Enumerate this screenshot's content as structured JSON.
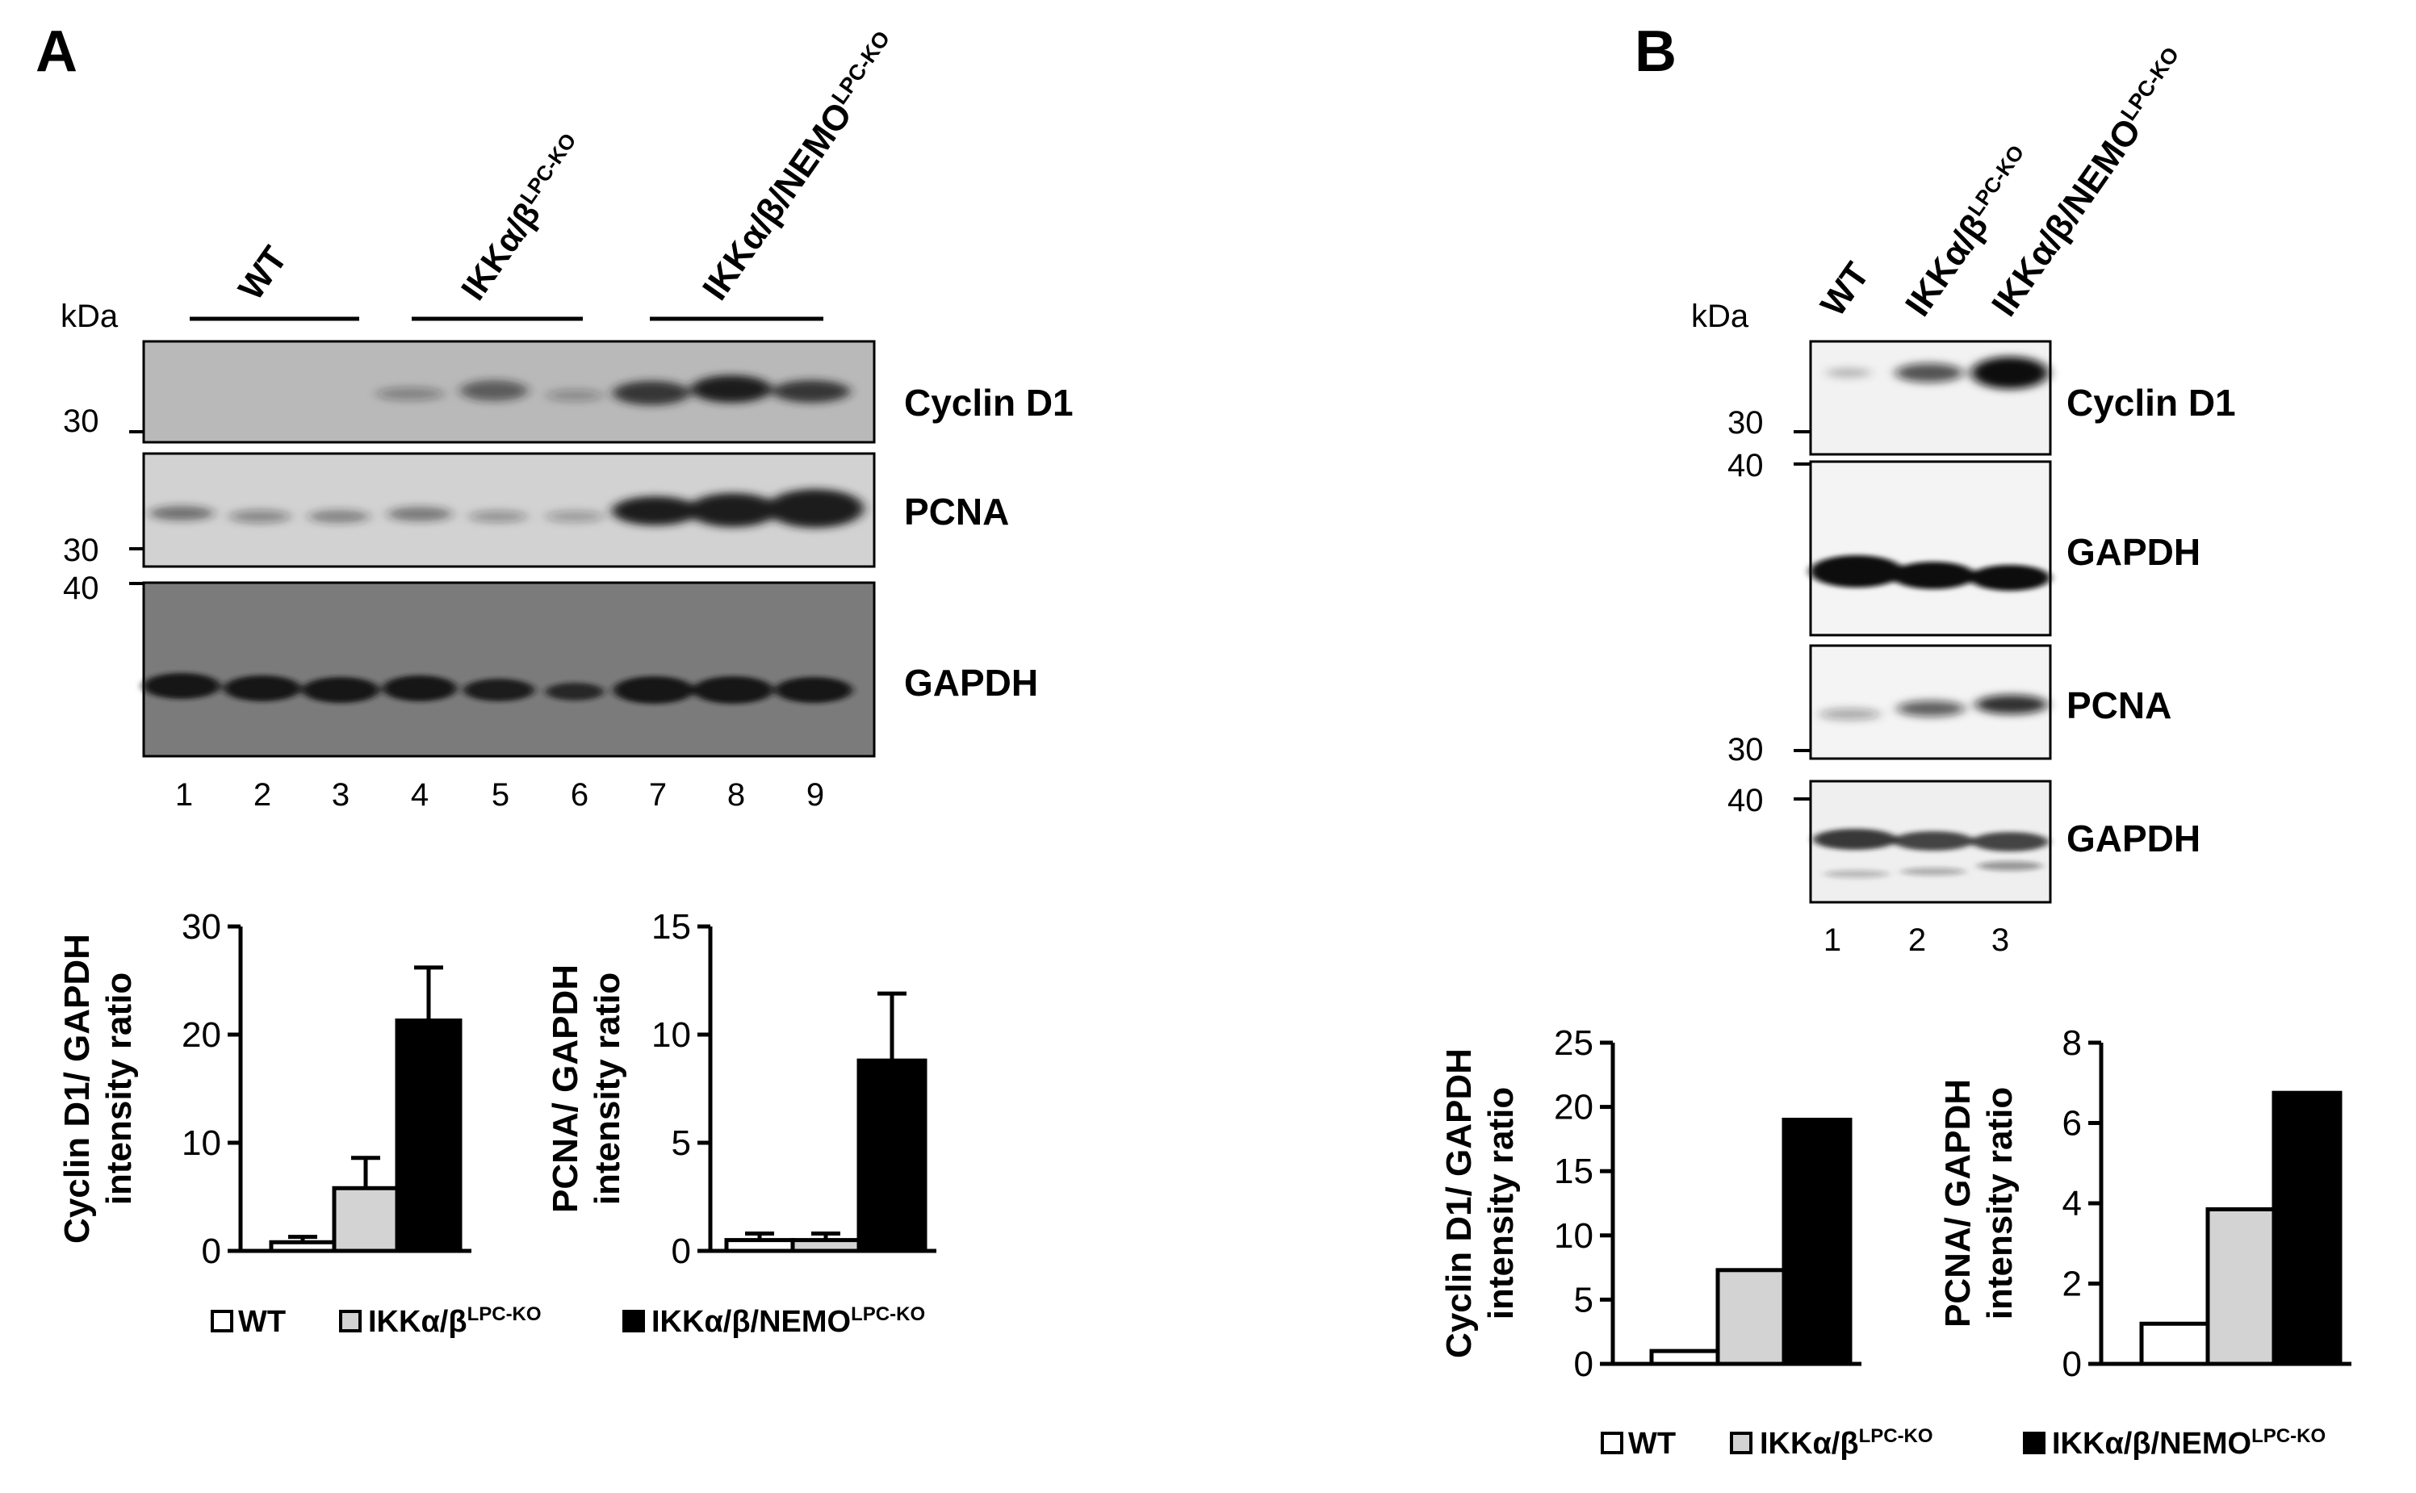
{
  "panels": {
    "A": {
      "letter": "A",
      "kda_label": "kDa",
      "groups": [
        {
          "label_base": "WT",
          "label_sup": ""
        },
        {
          "label_base": "IKKα/β",
          "label_sup": "LPC-KO"
        },
        {
          "label_base": "IKKα/β/NEMO",
          "label_sup": "LPC-KO"
        }
      ],
      "blots": [
        {
          "name": "Cyclin D1",
          "marker_top": "",
          "marker_bottom": "30"
        },
        {
          "name": "PCNA",
          "marker_top": "",
          "marker_bottom": "30"
        },
        {
          "name": "GAPDH",
          "marker_top": "40",
          "marker_bottom": ""
        }
      ],
      "lanes": [
        "1",
        "2",
        "3",
        "4",
        "5",
        "6",
        "7",
        "8",
        "9"
      ]
    },
    "B": {
      "letter": "B",
      "kda_label": "kDa",
      "groups": [
        {
          "label_base": "WT",
          "label_sup": ""
        },
        {
          "label_base": "IKKα/β",
          "label_sup": "LPC-KO"
        },
        {
          "label_base": "IKKα/β/NEMO",
          "label_sup": "LPC-KO"
        }
      ],
      "blots": [
        {
          "name": "Cyclin D1",
          "marker_top": "",
          "marker_bottom": "30"
        },
        {
          "name": "GAPDH",
          "marker_top": "40",
          "marker_bottom": ""
        },
        {
          "name": "PCNA",
          "marker_top": "",
          "marker_bottom": "30"
        },
        {
          "name": "GAPDH",
          "marker_top": "40",
          "marker_bottom": ""
        }
      ],
      "lanes": [
        "1",
        "2",
        "3"
      ]
    }
  },
  "legend": {
    "items": [
      {
        "base": "WT",
        "sup": "",
        "fill": "#ffffff"
      },
      {
        "base": "IKKα/β",
        "sup": "LPC-KO",
        "fill": "#d3d3d3"
      },
      {
        "base": "IKKα/β/NEMO",
        "sup": "LPC-KO",
        "fill": "#000000"
      }
    ]
  },
  "chart_data": [
    {
      "panel": "A",
      "type": "bar",
      "categories": [
        "WT",
        "IKKα/β LPC-KO",
        "IKKα/β/NEMO LPC-KO"
      ],
      "values": [
        0.8,
        5.8,
        21.3
      ],
      "errors": [
        0.5,
        2.8,
        4.9
      ],
      "ylabel_line1": "Cyclin D1/ GAPDH",
      "ylabel_line2": "intensity ratio",
      "ylim": [
        0,
        30
      ],
      "yticks": [
        "0",
        "10",
        "20",
        "30"
      ],
      "tick_values": [
        0,
        10,
        20,
        30
      ]
    },
    {
      "panel": "A",
      "type": "bar",
      "categories": [
        "WT",
        "IKKα/β LPC-KO",
        "IKKα/β/NEMO LPC-KO"
      ],
      "values": [
        0.5,
        0.5,
        8.8
      ],
      "errors": [
        0.3,
        0.3,
        3.1
      ],
      "ylabel_line1": "PCNA/ GAPDH",
      "ylabel_line2": "intensity ratio",
      "ylim": [
        0,
        15
      ],
      "yticks": [
        "0",
        "5",
        "10",
        "15"
      ],
      "tick_values": [
        0,
        5,
        10,
        15
      ]
    },
    {
      "panel": "B",
      "type": "bar",
      "categories": [
        "WT",
        "IKKα/β LPC-KO",
        "IKKα/β/NEMO LPC-KO"
      ],
      "values": [
        1.0,
        7.3,
        19.0
      ],
      "errors": null,
      "ylabel_line1": "Cyclin D1/ GAPDH",
      "ylabel_line2": "intensity ratio",
      "ylim": [
        0,
        25
      ],
      "yticks": [
        "0",
        "5",
        "10",
        "15",
        "20",
        "25"
      ],
      "tick_values": [
        0,
        5,
        10,
        15,
        20,
        25
      ]
    },
    {
      "panel": "B",
      "type": "bar",
      "categories": [
        "WT",
        "IKKα/β LPC-KO",
        "IKKα/β/NEMO LPC-KO"
      ],
      "values": [
        1.0,
        3.85,
        6.75
      ],
      "errors": null,
      "ylabel_line1": "PCNA/ GAPDH",
      "ylabel_line2": "intensity ratio",
      "ylim": [
        0,
        8
      ],
      "yticks": [
        "0",
        "2",
        "4",
        "6",
        "8"
      ],
      "tick_values": [
        0,
        2,
        4,
        6,
        8
      ]
    }
  ]
}
